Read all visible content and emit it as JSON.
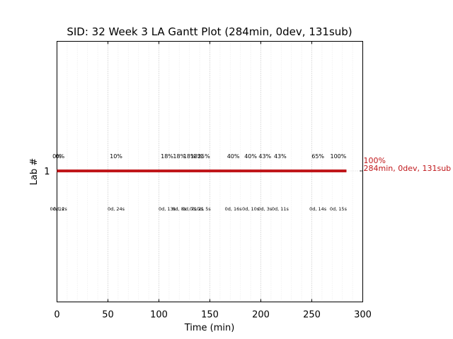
{
  "chart_data": {
    "type": "gantt",
    "title": "SID: 32 Week 3 LA Gantt Plot (284min, 0dev, 131sub)",
    "xlabel": "Time (min)",
    "ylabel": "Lab #",
    "xlim": [
      0,
      300
    ],
    "xticks": [
      0,
      50,
      100,
      150,
      200,
      250,
      300
    ],
    "x_major_grid": [
      50,
      100,
      150,
      200,
      250
    ],
    "x_minor_grid": [
      10,
      20,
      30,
      40,
      60,
      70,
      80,
      90,
      110,
      120,
      130,
      140,
      160,
      170,
      180,
      190,
      210,
      220,
      230,
      240,
      260,
      270,
      280,
      290
    ],
    "yticks": [
      "1"
    ],
    "bar": {
      "lab": "1",
      "start": 0,
      "end": 284,
      "color": "#c0171b"
    },
    "end_label_pct": "100%",
    "end_label_summary": "284min, 0dev, 131sub",
    "events": [
      {
        "x": 0,
        "pct": "0%",
        "time": "0d, 1s"
      },
      {
        "x": 3,
        "pct": "0%",
        "time": "0d, 2s"
      },
      {
        "x": 58,
        "pct": "10%",
        "time": "0d, 24s"
      },
      {
        "x": 108,
        "pct": "18%",
        "time": "0d, 13s"
      },
      {
        "x": 120,
        "pct": "18%",
        "time": "0d, 8s"
      },
      {
        "x": 130,
        "pct": "18%",
        "time": "0d, 7s"
      },
      {
        "x": 137,
        "pct": "18%",
        "time": "0d, 2s"
      },
      {
        "x": 144,
        "pct": "25%",
        "time": "0d, 5s"
      },
      {
        "x": 173,
        "pct": "40%",
        "time": "0d, 16s"
      },
      {
        "x": 190,
        "pct": "40%",
        "time": "0d, 10s"
      },
      {
        "x": 204,
        "pct": "43%",
        "time": "0d, 3s"
      },
      {
        "x": 219,
        "pct": "43%",
        "time": "0d, 11s"
      },
      {
        "x": 256,
        "pct": "65%",
        "time": "0d, 14s"
      },
      {
        "x": 276,
        "pct": "100%",
        "time": "0d, 15s"
      }
    ]
  }
}
